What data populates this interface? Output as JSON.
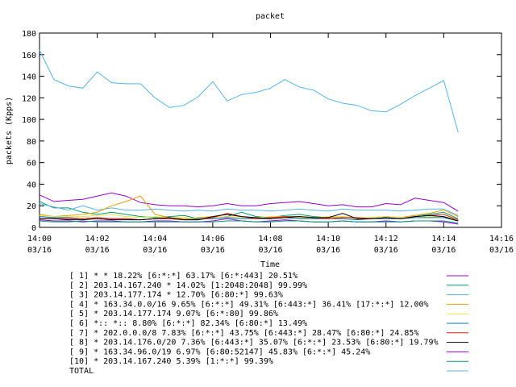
{
  "chart_data": {
    "type": "line",
    "title": "packet",
    "xlabel": "Time",
    "ylabel": "packets (Kpps)",
    "ylim": [
      0,
      180
    ],
    "xlim": [
      0,
      16
    ],
    "grid": false,
    "legend_position": "bottom",
    "y_ticks": [
      "0",
      "20",
      "40",
      "60",
      "80",
      "100",
      "120",
      "140",
      "160",
      "180"
    ],
    "x_ticks": [
      {
        "time": "14:00",
        "date": "03/16"
      },
      {
        "time": "14:02",
        "date": "03/16"
      },
      {
        "time": "14:04",
        "date": "03/16"
      },
      {
        "time": "14:06",
        "date": "03/16"
      },
      {
        "time": "14:08",
        "date": "03/16"
      },
      {
        "time": "14:10",
        "date": "03/16"
      },
      {
        "time": "14:12",
        "date": "03/16"
      },
      {
        "time": "14:14",
        "date": "03/16"
      },
      {
        "time": "14:16",
        "date": "03/16"
      }
    ],
    "x": [
      0,
      0.5,
      1,
      1.5,
      2,
      2.5,
      3,
      3.5,
      4,
      4.5,
      5,
      5.5,
      6,
      6.5,
      7,
      7.5,
      8,
      8.5,
      9,
      9.5,
      10,
      10.5,
      11,
      11.5,
      12,
      12.5,
      13,
      13.5,
      14,
      14.5
    ],
    "series": [
      {
        "name": "[ 1] * * 18.22%  [6:*:*] 63.17% [6:*:443] 20.51%",
        "color": "#9400d3",
        "values": [
          30,
          24,
          25,
          26,
          29,
          32,
          29,
          23,
          21,
          20,
          20,
          19,
          20,
          22,
          20,
          20,
          22,
          23,
          24,
          22,
          20,
          21,
          19,
          19,
          22,
          21,
          27,
          25,
          23,
          15
        ]
      },
      {
        "name": "[ 2] 203.14.167.240 * 14.02%  [1:2048:2048] 99.99%",
        "color": "#009e73",
        "values": [
          24,
          18,
          18,
          14,
          12,
          14,
          12,
          10,
          9,
          10,
          11,
          8,
          9,
          10,
          14,
          10,
          9,
          11,
          12,
          10,
          9,
          10,
          8,
          9,
          10,
          9,
          11,
          12,
          14,
          8
        ]
      },
      {
        "name": "[ 3] 203.14.177.174 * 12.70%  [6:80:*] 99.63%",
        "color": "#56b4e9",
        "values": [
          22,
          19,
          16,
          20,
          16,
          18,
          16,
          16,
          17,
          16,
          15,
          16,
          15,
          17,
          16,
          16,
          15,
          16,
          17,
          16,
          15,
          17,
          16,
          16,
          16,
          15,
          16,
          17,
          17,
          11
        ]
      },
      {
        "name": "[ 4] * 163.34.0.0/16 9.65%  [6:*:*] 49.31% [6:443:*] 36.41% [17:*:*] 12.00%",
        "color": "#e69f00",
        "values": [
          12,
          10,
          11,
          12,
          14,
          20,
          24,
          29,
          12,
          9,
          8,
          9,
          10,
          12,
          10,
          8,
          9,
          10,
          9,
          8,
          9,
          10,
          8,
          9,
          10,
          9,
          11,
          13,
          16,
          10
        ]
      },
      {
        "name": "[ 5] * 203.14.177.174 9.07%  [6:*:80] 99.86%",
        "color": "#f0e442",
        "values": [
          11,
          10,
          10,
          10,
          11,
          12,
          10,
          9,
          10,
          9,
          9,
          8,
          9,
          10,
          9,
          9,
          10,
          10,
          9,
          9,
          10,
          10,
          9,
          9,
          10,
          9,
          10,
          10,
          10,
          7
        ]
      },
      {
        "name": "[ 6] *:: *:: 8.80%  [6:*:*] 82.34% [6:80:*] 13.49%",
        "color": "#0072b2",
        "values": [
          10,
          9,
          9,
          8,
          9,
          8,
          8,
          7,
          8,
          8,
          7,
          8,
          8,
          9,
          8,
          8,
          8,
          9,
          8,
          8,
          8,
          8,
          7,
          8,
          8,
          8,
          9,
          9,
          9,
          6
        ]
      },
      {
        "name": "[ 7] * 202.0.0.0/8 7.83%  [6:*:*] 43.75% [6:443:*] 28.47% [6:80:*] 24.85%",
        "color": "#e51e10",
        "values": [
          8,
          8,
          8,
          8,
          9,
          8,
          8,
          7,
          8,
          8,
          7,
          7,
          9,
          13,
          10,
          8,
          9,
          10,
          10,
          9,
          8,
          9,
          9,
          8,
          9,
          8,
          10,
          11,
          12,
          7
        ]
      },
      {
        "name": "[ 8] * 203.14.176.0/20 7.36%  [6:443:*] 35.07% [6:*:*] 23.53% [6:80:*] 19.79%",
        "color": "#000000",
        "values": [
          8,
          8,
          7,
          7,
          8,
          7,
          7,
          7,
          8,
          9,
          7,
          7,
          10,
          12,
          10,
          9,
          8,
          9,
          10,
          9,
          9,
          13,
          8,
          8,
          9,
          8,
          10,
          11,
          10,
          6
        ]
      },
      {
        "name": "[ 9] * 163.34.96.0/19 6.97%  [6:80:52147] 45.83% [6:*:*] 45.24%",
        "color": "#9400d3",
        "values": [
          7,
          6,
          6,
          5,
          6,
          6,
          5,
          5,
          6,
          6,
          5,
          5,
          6,
          8,
          6,
          5,
          6,
          7,
          6,
          5,
          5,
          6,
          5,
          5,
          6,
          5,
          6,
          6,
          5,
          3
        ]
      },
      {
        "name": "[10] * 203.14.167.240 5.39%  [1:*:*] 99.39%",
        "color": "#009e73",
        "values": [
          6,
          5,
          5,
          6,
          5,
          5,
          5,
          5,
          5,
          5,
          5,
          5,
          5,
          6,
          6,
          5,
          5,
          6,
          6,
          5,
          5,
          6,
          5,
          5,
          5,
          5,
          6,
          6,
          6,
          4
        ]
      },
      {
        "name": "TOTAL",
        "color": "#56b4e9",
        "values": [
          164,
          137,
          131,
          129,
          144,
          134,
          133,
          133,
          120,
          111,
          113,
          121,
          135,
          117,
          123,
          125,
          129,
          137,
          130,
          127,
          119,
          115,
          113,
          108,
          107,
          114,
          122,
          129,
          136,
          88
        ]
      }
    ]
  }
}
